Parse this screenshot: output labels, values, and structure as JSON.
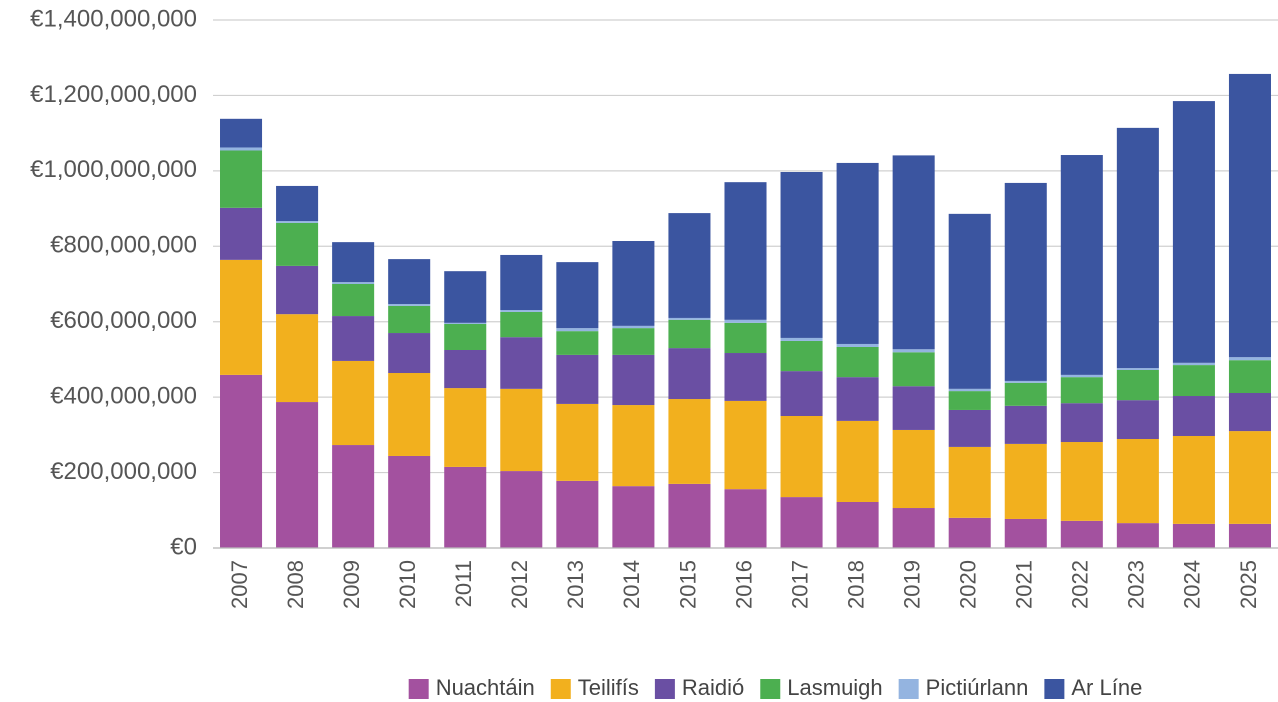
{
  "chart_data": {
    "type": "stacked_bar",
    "categories": [
      "2007",
      "2008",
      "2009",
      "2010",
      "2011",
      "2012",
      "2013",
      "2014",
      "2015",
      "2016",
      "2017",
      "2018",
      "2019",
      "2020",
      "2021",
      "2022",
      "2023",
      "2024",
      "2025"
    ],
    "series": [
      {
        "name": "Nuachtáin",
        "color": "#a3519f",
        "values": [
          459000000,
          387000000,
          273000000,
          244000000,
          215000000,
          204000000,
          178000000,
          164000000,
          170000000,
          156000000,
          135000000,
          122000000,
          106000000,
          80000000,
          77000000,
          72000000,
          66000000,
          64000000,
          64000000
        ]
      },
      {
        "name": "Teilifís",
        "color": "#f2b01e",
        "values": [
          305000000,
          233000000,
          223000000,
          220000000,
          209000000,
          218000000,
          204000000,
          215000000,
          225000000,
          234000000,
          215000000,
          215000000,
          207000000,
          188000000,
          199000000,
          209000000,
          223000000,
          233000000,
          246000000
        ]
      },
      {
        "name": "Raidió",
        "color": "#6a4fa3",
        "values": [
          138000000,
          128000000,
          119000000,
          106000000,
          101000000,
          137000000,
          130000000,
          133000000,
          135000000,
          127000000,
          119000000,
          116000000,
          116000000,
          98000000,
          101000000,
          103000000,
          103000000,
          106000000,
          101000000
        ]
      },
      {
        "name": "Lasmuigh",
        "color": "#4caf50",
        "values": [
          152000000,
          114000000,
          85000000,
          72000000,
          69000000,
          67000000,
          63000000,
          71000000,
          75000000,
          80000000,
          80000000,
          80000000,
          90000000,
          50000000,
          61000000,
          69000000,
          80000000,
          82000000,
          87000000
        ]
      },
      {
        "name": "Pictiúrlann",
        "color": "#94b4e0",
        "values": [
          8000000,
          5000000,
          5000000,
          5000000,
          3000000,
          5000000,
          8000000,
          6000000,
          5000000,
          8000000,
          8000000,
          8000000,
          8000000,
          6000000,
          5000000,
          6000000,
          5000000,
          6000000,
          8000000
        ]
      },
      {
        "name": "Ar Líne",
        "color": "#3b55a0",
        "values": [
          76000000,
          93000000,
          106000000,
          119000000,
          137000000,
          146000000,
          175000000,
          225000000,
          278000000,
          365000000,
          440000000,
          480000000,
          514000000,
          464000000,
          525000000,
          583000000,
          637000000,
          694000000,
          751000000
        ]
      }
    ],
    "ylim": [
      0,
      1400000000
    ],
    "yticks": [
      {
        "value": 0,
        "label": "€0"
      },
      {
        "value": 200000000,
        "label": "€200,000,000"
      },
      {
        "value": 400000000,
        "label": "€400,000,000"
      },
      {
        "value": 600000000,
        "label": "€600,000,000"
      },
      {
        "value": 800000000,
        "label": "€800,000,000"
      },
      {
        "value": 1000000000,
        "label": "€1,000,000,000"
      },
      {
        "value": 1200000000,
        "label": "€1,200,000,000"
      },
      {
        "value": 1400000000,
        "label": "€1,400,000,000"
      }
    ],
    "grid": true,
    "legend": "bottom"
  }
}
